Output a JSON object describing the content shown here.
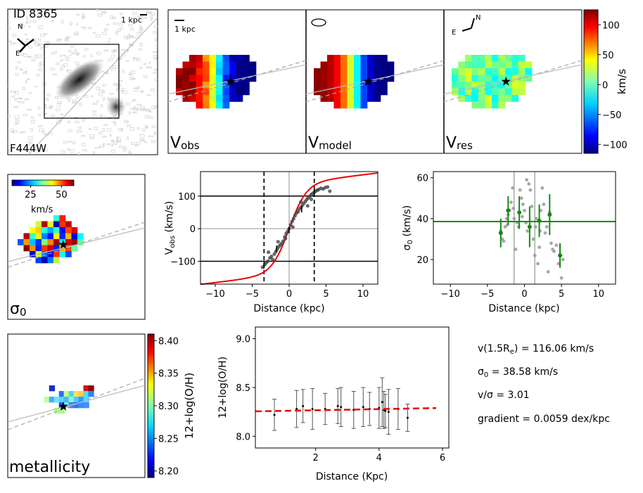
{
  "header": {
    "object_id": "ID 8365",
    "filter": "F444W",
    "scale_bar": "1 kpc"
  },
  "compass": {
    "north": "N",
    "east": "E"
  },
  "velocity_panels": [
    {
      "key": "obs",
      "label_main": "V",
      "label_sub": "obs"
    },
    {
      "key": "model",
      "label_main": "V",
      "label_sub": "model"
    },
    {
      "key": "res",
      "label_main": "V",
      "label_sub": "res"
    }
  ],
  "velocity_colorbar": {
    "unit": "km/s",
    "ticks": [
      "100",
      "50",
      "0",
      "−50",
      "−100"
    ],
    "range": [
      -115,
      125
    ]
  },
  "sigma_map": {
    "label_main": "σ",
    "label_sub": "0",
    "colorbar_unit": "km/s",
    "colorbar_ticks": [
      "25",
      "50"
    ],
    "colorbar_range": [
      10,
      60
    ]
  },
  "metallicity_map": {
    "label": "metallicity",
    "colorbar_label": "12+log(O/H)",
    "colorbar_ticks": [
      "8.40",
      "8.35",
      "8.30",
      "8.25",
      "8.20"
    ],
    "colorbar_range": [
      8.19,
      8.41
    ]
  },
  "summary": {
    "v_line": "v(1.5R",
    "v_sub": "e",
    "v_value": ") = 116.06 km/s",
    "sigma_main": "σ",
    "sigma_sub": "0",
    "sigma_value": " = 38.58 km/s",
    "ratio": "v/σ = 3.01",
    "gradient": "gradient = 0.0059 dex/kpc"
  },
  "chart_data": [
    {
      "name": "rotation-curve",
      "type": "scatter",
      "xlabel": "Distance (kpc)",
      "ylabel_main": "V",
      "ylabel_sub": "obs",
      "ylabel_unit": " (km/s)",
      "xlim": [
        -12,
        12
      ],
      "ylim": [
        -170,
        175
      ],
      "xticks": [
        "−10",
        "−5",
        "0",
        "5",
        "10"
      ],
      "yticks": [
        "100",
        "0",
        "−100"
      ],
      "hlines": [
        100,
        -100,
        0
      ],
      "vlines_dashed": [
        -3.4,
        3.4
      ],
      "points": [
        [
          -3.6,
          -118
        ],
        [
          -3.3,
          -110
        ],
        [
          -3.1,
          -104
        ],
        [
          -2.9,
          -100
        ],
        [
          -2.6,
          -90
        ],
        [
          -2.4,
          -85
        ],
        [
          -2.2,
          -95
        ],
        [
          -2.0,
          -78
        ],
        [
          -1.8,
          -70
        ],
        [
          -1.6,
          -62
        ],
        [
          -1.4,
          -55
        ],
        [
          -1.2,
          -50
        ],
        [
          -1.0,
          -45
        ],
        [
          -0.8,
          -38
        ],
        [
          -0.6,
          -25
        ],
        [
          -0.4,
          -15
        ],
        [
          -0.2,
          -8
        ],
        [
          0.0,
          0
        ],
        [
          0.2,
          12
        ],
        [
          0.4,
          22
        ],
        [
          0.6,
          30
        ],
        [
          0.8,
          40
        ],
        [
          1.0,
          48
        ],
        [
          1.2,
          52
        ],
        [
          1.4,
          60
        ],
        [
          1.6,
          66
        ],
        [
          1.8,
          72
        ],
        [
          2.0,
          78
        ],
        [
          2.2,
          84
        ],
        [
          2.4,
          90
        ],
        [
          2.6,
          95
        ],
        [
          2.8,
          100
        ],
        [
          3.0,
          105
        ],
        [
          3.2,
          108
        ],
        [
          3.4,
          112
        ],
        [
          3.6,
          115
        ],
        [
          3.8,
          118
        ],
        [
          4.0,
          120
        ],
        [
          4.3,
          124
        ],
        [
          4.6,
          122
        ],
        [
          4.9,
          126
        ],
        [
          5.2,
          128
        ],
        [
          5.5,
          115
        ],
        [
          1.6,
          82
        ],
        [
          2.5,
          70
        ],
        [
          -1.5,
          -40
        ],
        [
          -2.8,
          -72
        ],
        [
          0.5,
          5
        ],
        [
          -0.5,
          -30
        ],
        [
          3.0,
          90
        ]
      ],
      "errorbars": [
        {
          "x": -3.4,
          "y": -112,
          "e": 10
        },
        {
          "x": -1.7,
          "y": -62,
          "e": 10
        },
        {
          "x": 0.0,
          "y": -4,
          "e": 10
        },
        {
          "x": 1.7,
          "y": 60,
          "e": 10
        },
        {
          "x": 3.4,
          "y": 112,
          "e": 10
        }
      ],
      "model_curve": "red"
    },
    {
      "name": "dispersion-profile",
      "type": "scatter",
      "xlabel": "Distance (kpc)",
      "ylabel_main": "σ",
      "ylabel_sub": "0",
      "ylabel_unit": " (km/s)",
      "xlim": [
        -12.3,
        12.3
      ],
      "ylim": [
        8,
        63
      ],
      "xticks": [
        "−10",
        "−5",
        "0",
        "5",
        "10"
      ],
      "yticks": [
        "60",
        "40",
        "20"
      ],
      "hline": 38.58,
      "vlines": [
        -1.4,
        1.4
      ],
      "gray_points": [
        [
          -3.2,
          34
        ],
        [
          -3.0,
          30
        ],
        [
          -2.8,
          29
        ],
        [
          -2.6,
          36
        ],
        [
          -2.4,
          40
        ],
        [
          -2.2,
          42
        ],
        [
          -2.0,
          44
        ],
        [
          -1.8,
          48
        ],
        [
          -1.6,
          55
        ],
        [
          -1.5,
          45
        ],
        [
          -1.4,
          40
        ],
        [
          -1.2,
          25
        ],
        [
          -1.0,
          38
        ],
        [
          -0.8,
          36
        ],
        [
          -0.6,
          54
        ],
        [
          -0.4,
          50
        ],
        [
          -0.2,
          47
        ],
        [
          0.0,
          44
        ],
        [
          0.2,
          38
        ],
        [
          0.4,
          34
        ],
        [
          0.6,
          57
        ],
        [
          0.8,
          54
        ],
        [
          1.0,
          46
        ],
        [
          1.2,
          30
        ],
        [
          1.4,
          22
        ],
        [
          1.5,
          36
        ],
        [
          1.6,
          40
        ],
        [
          1.8,
          18
        ],
        [
          2.0,
          26
        ],
        [
          2.2,
          44
        ],
        [
          2.4,
          55
        ],
        [
          2.6,
          47
        ],
        [
          2.8,
          33
        ],
        [
          3.0,
          36
        ],
        [
          3.2,
          14
        ],
        [
          3.4,
          43
        ],
        [
          3.6,
          28
        ],
        [
          3.8,
          25
        ],
        [
          4.0,
          24
        ],
        [
          4.3,
          27
        ],
        [
          4.6,
          18
        ],
        [
          4.9,
          22
        ],
        [
          5.2,
          20
        ],
        [
          5.0,
          11
        ],
        [
          0.3,
          59
        ],
        [
          -0.3,
          41
        ],
        [
          2.1,
          34
        ],
        [
          -2.3,
          37
        ]
      ],
      "errorbars": [
        {
          "x": -3.2,
          "y": 33,
          "e": 7
        },
        {
          "x": -2.2,
          "y": 44,
          "e": 7
        },
        {
          "x": -0.7,
          "y": 43,
          "e": 8
        },
        {
          "x": 0.7,
          "y": 36,
          "e": 10
        },
        {
          "x": 2.0,
          "y": 39,
          "e": 8
        },
        {
          "x": 3.4,
          "y": 42,
          "e": 10
        },
        {
          "x": 4.8,
          "y": 22,
          "e": 6
        }
      ]
    },
    {
      "name": "metallicity-gradient",
      "type": "scatter",
      "xlabel": "Distance (Kpc)",
      "ylabel": "12+log(O/H)",
      "xlim": [
        0.1,
        6.2
      ],
      "ylim": [
        7.88,
        9.12
      ],
      "xticks": [
        "2",
        "4",
        "6"
      ],
      "yticks": [
        "9.0",
        "8.5",
        "8.0"
      ],
      "fit": {
        "slope": 0.0059,
        "intercept": 8.255
      },
      "points": [
        {
          "x": 0.7,
          "y": 8.22,
          "e": 0.16
        },
        {
          "x": 1.4,
          "y": 8.28,
          "e": 0.19
        },
        {
          "x": 1.6,
          "y": 8.31,
          "e": 0.17
        },
        {
          "x": 1.9,
          "y": 8.28,
          "e": 0.21
        },
        {
          "x": 2.3,
          "y": 8.28,
          "e": 0.16
        },
        {
          "x": 2.7,
          "y": 8.31,
          "e": 0.18
        },
        {
          "x": 2.8,
          "y": 8.3,
          "e": 0.2
        },
        {
          "x": 3.2,
          "y": 8.27,
          "e": 0.19
        },
        {
          "x": 3.5,
          "y": 8.3,
          "e": 0.2
        },
        {
          "x": 3.7,
          "y": 8.28,
          "e": 0.17
        },
        {
          "x": 4.0,
          "y": 8.29,
          "e": 0.21
        },
        {
          "x": 4.1,
          "y": 8.35,
          "e": 0.25
        },
        {
          "x": 4.15,
          "y": 8.27,
          "e": 0.19
        },
        {
          "x": 4.2,
          "y": 8.26,
          "e": 0.17
        },
        {
          "x": 4.3,
          "y": 8.25,
          "e": 0.23
        },
        {
          "x": 4.6,
          "y": 8.28,
          "e": 0.21
        },
        {
          "x": 4.9,
          "y": 8.19,
          "e": 0.14
        }
      ]
    }
  ]
}
